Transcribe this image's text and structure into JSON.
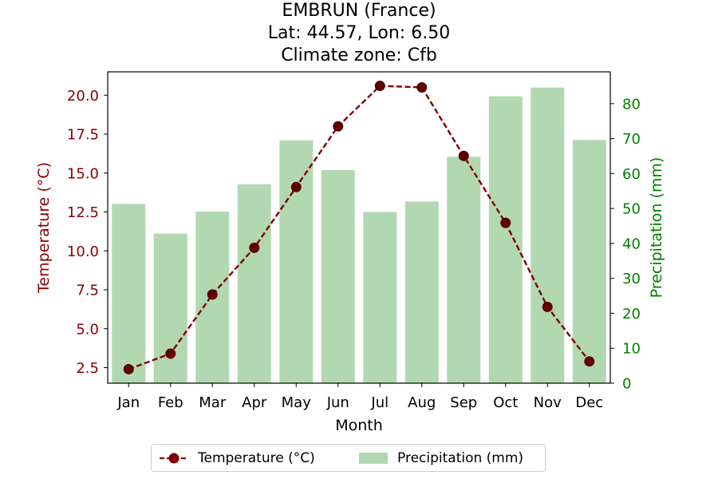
{
  "chart_data": {
    "type": "bar",
    "title_lines": [
      "EMBRUN (France)",
      "Lat: 44.57, Lon: 6.50",
      "Climate zone: Cfb"
    ],
    "xlabel": "Month",
    "ylabel_left": "Temperature (°C)",
    "ylabel_right": "Precipitation (mm)",
    "categories": [
      "Jan",
      "Feb",
      "Mar",
      "Apr",
      "May",
      "Jun",
      "Jul",
      "Aug",
      "Sep",
      "Oct",
      "Nov",
      "Dec"
    ],
    "series": [
      {
        "name": "Temperature (°C)",
        "type": "line",
        "axis": "left",
        "color": "#800000",
        "values": [
          2.4,
          3.4,
          7.2,
          10.2,
          14.1,
          18.0,
          20.6,
          20.5,
          16.1,
          11.8,
          6.4,
          2.9
        ]
      },
      {
        "name": "Precipitation (mm)",
        "type": "bar",
        "axis": "right",
        "color": "#b2d8b2",
        "values": [
          51.3,
          42.8,
          49.1,
          56.9,
          69.5,
          61.0,
          49.0,
          52.0,
          64.8,
          82.1,
          84.6,
          69.6
        ]
      }
    ],
    "ylim_left": [
      1.5,
      21.5
    ],
    "ylim_right": [
      0,
      89.1
    ],
    "yticks_left": [
      "2.5",
      "5.0",
      "7.5",
      "10.0",
      "12.5",
      "15.0",
      "17.5",
      "20.0"
    ],
    "yticks_right": [
      "0",
      "10",
      "20",
      "30",
      "40",
      "50",
      "60",
      "70",
      "80"
    ],
    "left_axis_color": "#8b0000",
    "right_axis_color": "#008000",
    "grid": false,
    "legend_position": "bottom-center"
  }
}
